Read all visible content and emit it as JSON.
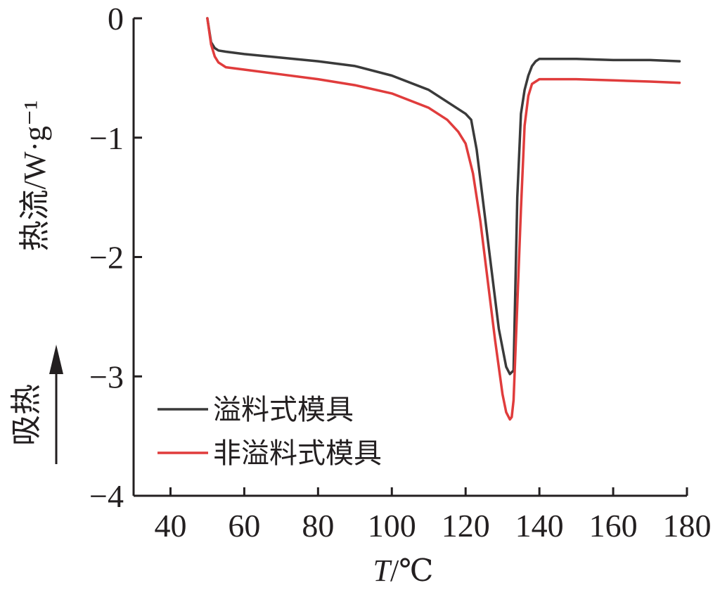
{
  "chart_data": {
    "type": "line",
    "title": "",
    "xlabel": "T/℃",
    "ylabel": "热流/W·g⁻¹",
    "annotation": "吸热",
    "xlim": [
      30,
      180
    ],
    "ylim": [
      -4,
      0
    ],
    "x_ticks": [
      40,
      60,
      80,
      100,
      120,
      140,
      160,
      180
    ],
    "y_ticks": [
      0,
      -1,
      -2,
      -3,
      -4
    ],
    "y_tick_labels": [
      "0",
      "−1",
      "−2",
      "−3",
      "−4"
    ],
    "grid": false,
    "legend_position": "bottom-left",
    "series": [
      {
        "name": "溢料式模具",
        "color": "#3a3a3a",
        "x": [
          50,
          51,
          52,
          53,
          55,
          60,
          70,
          80,
          90,
          100,
          110,
          115,
          120,
          121.5,
          123,
          125,
          127,
          129,
          131,
          132,
          133,
          134,
          135,
          136,
          137,
          138,
          139,
          140,
          145,
          150,
          160,
          170,
          178
        ],
        "y": [
          0.0,
          -0.2,
          -0.25,
          -0.27,
          -0.28,
          -0.3,
          -0.33,
          -0.36,
          -0.4,
          -0.48,
          -0.6,
          -0.7,
          -0.8,
          -0.85,
          -1.1,
          -1.6,
          -2.1,
          -2.6,
          -2.92,
          -2.98,
          -2.95,
          -1.5,
          -0.8,
          -0.6,
          -0.48,
          -0.4,
          -0.36,
          -0.34,
          -0.34,
          -0.34,
          -0.35,
          -0.35,
          -0.36
        ]
      },
      {
        "name": "非溢料式模具",
        "color": "#e03c3c",
        "x": [
          50,
          51,
          52,
          53,
          55,
          60,
          70,
          80,
          90,
          100,
          110,
          115,
          118,
          120,
          122,
          124,
          126,
          128,
          130,
          131,
          132,
          132.5,
          133,
          134,
          135,
          136,
          137,
          138,
          140,
          145,
          150,
          160,
          170,
          178
        ],
        "y": [
          0.0,
          -0.22,
          -0.32,
          -0.37,
          -0.41,
          -0.43,
          -0.47,
          -0.51,
          -0.56,
          -0.63,
          -0.75,
          -0.85,
          -0.95,
          -1.05,
          -1.3,
          -1.7,
          -2.2,
          -2.7,
          -3.15,
          -3.3,
          -3.36,
          -3.34,
          -3.2,
          -2.4,
          -1.6,
          -0.9,
          -0.65,
          -0.55,
          -0.51,
          -0.51,
          -0.51,
          -0.52,
          -0.53,
          -0.54
        ]
      }
    ]
  }
}
